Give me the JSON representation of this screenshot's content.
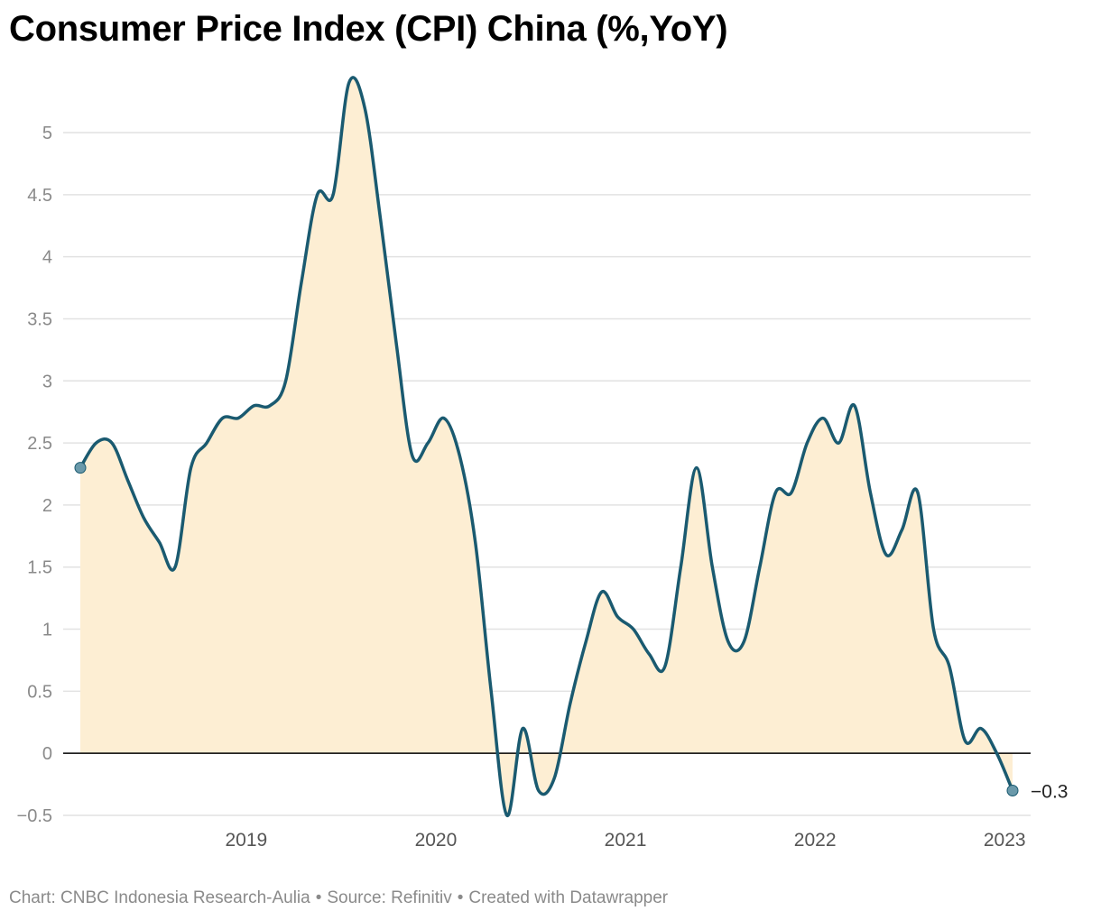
{
  "header": {
    "title": "Consumer Price Index (CPI) China (%,YoY)"
  },
  "footer": {
    "chart_credit": "Chart: CNBC Indonesia Research-Aulia",
    "separator": "•",
    "source": "Source: Refinitiv",
    "created_with": "Created with Datawrapper"
  },
  "colors": {
    "line": "#1a5a70",
    "area": "#fdeed3",
    "marker": "#6a99aa",
    "grid": "#e2e2e2",
    "baseline": "#000000"
  },
  "chart_data": {
    "type": "area",
    "title": "Consumer Price Index (CPI) China (%,YoY)",
    "xlabel": "",
    "ylabel": "",
    "ylim": [
      -0.5,
      5.5
    ],
    "y_ticks": [
      5,
      4.5,
      4,
      3.5,
      3,
      2.5,
      2,
      1.5,
      1,
      0.5,
      0,
      -0.5
    ],
    "y_tick_labels": [
      "5",
      "4.5",
      "4",
      "3.5",
      "3",
      "2.5",
      "2",
      "1.5",
      "1",
      "0.5",
      "0",
      "−0.5"
    ],
    "x_ticks": [
      "2019",
      "2020",
      "2021",
      "2022",
      "2023"
    ],
    "grid": true,
    "end_label": "−0.3",
    "series": [
      {
        "x": [
          "2018-08",
          "2018-09",
          "2018-10",
          "2018-11",
          "2018-12",
          "2019-01",
          "2019-02",
          "2019-03",
          "2019-04",
          "2019-05",
          "2019-06",
          "2019-07",
          "2019-08",
          "2019-09",
          "2019-10",
          "2019-11",
          "2019-12",
          "2020-01",
          "2020-02",
          "2020-03",
          "2020-04",
          "2020-05",
          "2020-06",
          "2020-07",
          "2020-08",
          "2020-09",
          "2020-10",
          "2020-11",
          "2020-12",
          "2021-01",
          "2021-02",
          "2021-03",
          "2021-04",
          "2021-05",
          "2021-06",
          "2021-07",
          "2021-08",
          "2021-09",
          "2021-10",
          "2021-11",
          "2021-12",
          "2022-01",
          "2022-02",
          "2022-03",
          "2022-04",
          "2022-05",
          "2022-06",
          "2022-07",
          "2022-08",
          "2022-09",
          "2022-10",
          "2022-11",
          "2022-12",
          "2023-01",
          "2023-02",
          "2023-03",
          "2023-04",
          "2023-05",
          "2023-06",
          "2023-07"
        ],
        "values": [
          2.3,
          2.5,
          2.5,
          2.2,
          1.9,
          1.7,
          1.5,
          2.3,
          2.5,
          2.7,
          2.7,
          2.8,
          2.8,
          3.0,
          3.8,
          4.5,
          4.5,
          5.4,
          5.2,
          4.3,
          3.3,
          2.4,
          2.5,
          2.7,
          2.4,
          1.7,
          0.5,
          -0.5,
          0.2,
          -0.3,
          -0.2,
          0.4,
          0.9,
          1.3,
          1.1,
          1.0,
          0.8,
          0.7,
          1.5,
          2.3,
          1.5,
          0.9,
          0.9,
          1.5,
          2.1,
          2.1,
          2.5,
          2.7,
          2.5,
          2.8,
          2.1,
          1.6,
          1.8,
          2.1,
          1.0,
          0.7,
          0.1,
          0.2,
          0.0,
          -0.3
        ]
      }
    ]
  }
}
